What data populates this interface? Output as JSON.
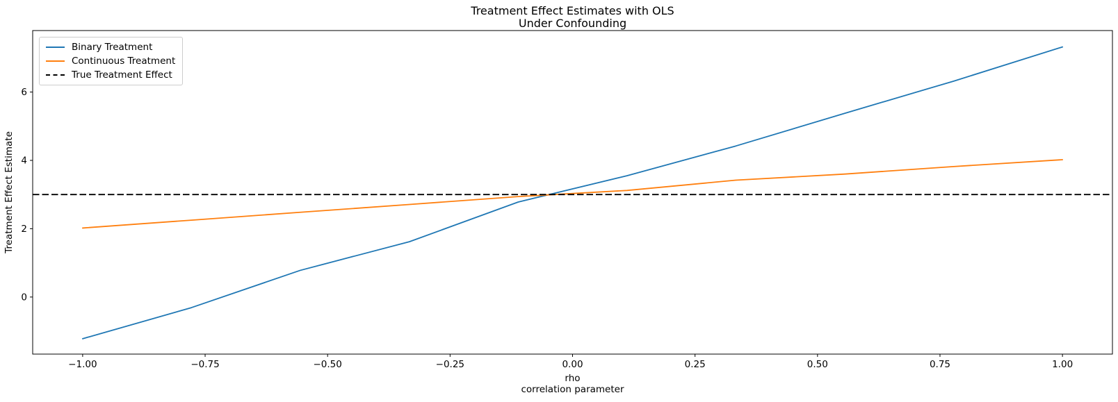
{
  "figure": {
    "title_line1": "Treatment Effect Estimates with OLS",
    "title_line2": "Under Confounding"
  },
  "axes": {
    "ylabel": "Treatment Effect Estimate",
    "xlabel_line1": "rho",
    "xlabel_line2": "correlation parameter"
  },
  "chart_data": {
    "type": "line",
    "title": "Treatment Effect Estimates with OLS\nUnder Confounding",
    "xlabel": "rho\ncorrelation parameter",
    "ylabel": "Treatment Effect Estimate",
    "grid": false,
    "legend_position": "upper left",
    "xlim": [
      -1.102,
      1.102
    ],
    "ylim": [
      -1.67,
      7.8
    ],
    "x": [
      -1.0,
      -0.778,
      -0.556,
      -0.333,
      -0.111,
      0.111,
      0.333,
      0.556,
      0.778,
      1.0
    ],
    "series": [
      {
        "name": "Binary Treatment",
        "color": "#1f77b4",
        "line_style": "solid",
        "values": [
          -1.22,
          -0.31,
          0.78,
          1.62,
          2.78,
          3.55,
          4.42,
          5.38,
          6.32,
          7.32
        ]
      },
      {
        "name": "Continuous Treatment",
        "color": "#ff7f0e",
        "line_style": "solid",
        "values": [
          2.02,
          2.25,
          2.48,
          2.71,
          2.94,
          3.12,
          3.42,
          3.6,
          3.82,
          4.02
        ]
      },
      {
        "name": "True Treatment Effect",
        "color": "#000000",
        "line_style": "dashed",
        "hline": 3
      }
    ],
    "true_effect": 3,
    "x_ticks": [
      {
        "value": -1.0,
        "label": "−1.00"
      },
      {
        "value": -0.75,
        "label": "−0.75"
      },
      {
        "value": -0.5,
        "label": "−0.50"
      },
      {
        "value": -0.25,
        "label": "−0.25"
      },
      {
        "value": 0.0,
        "label": "0.00"
      },
      {
        "value": 0.25,
        "label": "0.25"
      },
      {
        "value": 0.5,
        "label": "0.50"
      },
      {
        "value": 0.75,
        "label": "0.75"
      },
      {
        "value": 1.0,
        "label": "1.00"
      }
    ],
    "y_ticks": [
      {
        "value": 0,
        "label": "0"
      },
      {
        "value": 2,
        "label": "2"
      },
      {
        "value": 4,
        "label": "4"
      },
      {
        "value": 6,
        "label": "6"
      }
    ]
  }
}
